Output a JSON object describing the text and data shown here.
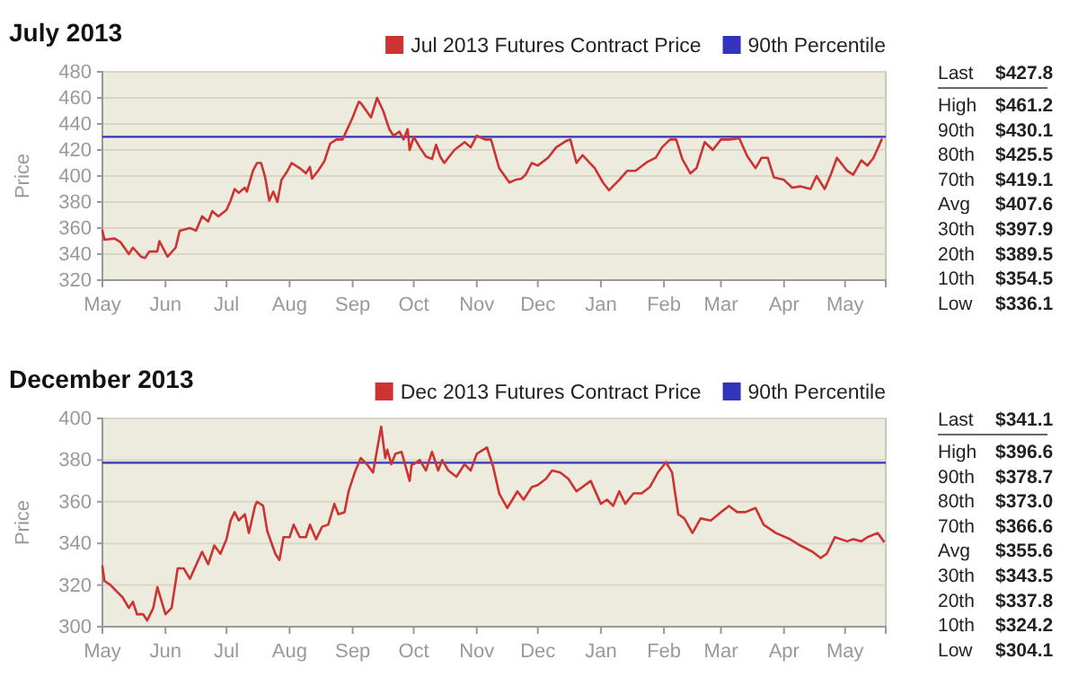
{
  "chart_data": [
    {
      "type": "line",
      "title": "July 2013",
      "ylabel": "Price",
      "legend": "top right",
      "grid": "y",
      "xlim": [
        "2012-05-01",
        "2013-05-21"
      ],
      "xticks": [
        {
          "value": "2012-05-01",
          "label": "May"
        },
        {
          "value": "2012-06-01",
          "label": "Jun"
        },
        {
          "value": "2012-07-01",
          "label": "Jul"
        },
        {
          "value": "2012-08-01",
          "label": "Aug"
        },
        {
          "value": "2012-09-01",
          "label": "Sep"
        },
        {
          "value": "2012-10-01",
          "label": "Oct"
        },
        {
          "value": "2012-11-01",
          "label": "Nov"
        },
        {
          "value": "2012-12-01",
          "label": "Dec"
        },
        {
          "value": "2013-01-01",
          "label": "Jan"
        },
        {
          "value": "2013-02-01",
          "label": "Feb"
        },
        {
          "value": "2013-03-01",
          "label": "Mar"
        },
        {
          "value": "2013-04-01",
          "label": "Apr"
        },
        {
          "value": "2013-05-01",
          "label": "May"
        }
      ],
      "ylim": [
        320,
        480
      ],
      "yticks": [
        320,
        340,
        360,
        380,
        400,
        420,
        440,
        460,
        480
      ],
      "ref_lines": [
        {
          "axis": "y",
          "value": 430.1,
          "label": "90th Percentile",
          "color": "#3333bb"
        }
      ],
      "annotations": [
        "Last $427.8",
        "High $461.2",
        "90th $430.1",
        "80th $425.5",
        "70th $419.1",
        "Avg $407.6",
        "30th $397.9",
        "20th $389.5",
        "10th $354.5",
        "Low $336.1"
      ],
      "series": [
        {
          "name": "Jul 2013 Futures Contract Price",
          "color": "#cc3333",
          "x": [
            "2012-05-01",
            "2012-05-02",
            "2012-05-07",
            "2012-05-10",
            "2012-05-14",
            "2012-05-16",
            "2012-05-20",
            "2012-05-22",
            "2012-05-24",
            "2012-05-28",
            "2012-05-29",
            "2012-06-02",
            "2012-06-06",
            "2012-06-08",
            "2012-06-13",
            "2012-06-16",
            "2012-06-19",
            "2012-06-22",
            "2012-06-24",
            "2012-06-27",
            "2012-07-01",
            "2012-07-03",
            "2012-07-05",
            "2012-07-07",
            "2012-07-10",
            "2012-07-11",
            "2012-07-14",
            "2012-07-16",
            "2012-07-18",
            "2012-07-20",
            "2012-07-22",
            "2012-07-24",
            "2012-07-26",
            "2012-07-28",
            "2012-07-31",
            "2012-08-02",
            "2012-08-06",
            "2012-08-09",
            "2012-08-11",
            "2012-08-12",
            "2012-08-15",
            "2012-08-18",
            "2012-08-21",
            "2012-08-24",
            "2012-08-27",
            "2012-09-01",
            "2012-09-04",
            "2012-09-05",
            "2012-09-10",
            "2012-09-13",
            "2012-09-16",
            "2012-09-19",
            "2012-09-21",
            "2012-09-24",
            "2012-09-26",
            "2012-09-28",
            "2012-09-29",
            "2012-10-01",
            "2012-10-04",
            "2012-10-07",
            "2012-10-10",
            "2012-10-12",
            "2012-10-14",
            "2012-10-16",
            "2012-10-21",
            "2012-10-26",
            "2012-10-29",
            "2012-11-01",
            "2012-11-05",
            "2012-11-08",
            "2012-11-12",
            "2012-11-17",
            "2012-11-20",
            "2012-11-23",
            "2012-11-25",
            "2012-11-28",
            "2012-12-01",
            "2012-12-06",
            "2012-12-10",
            "2012-12-15",
            "2012-12-17",
            "2012-12-20",
            "2012-12-23",
            "2012-12-29",
            "2013-01-02",
            "2013-01-05",
            "2013-01-10",
            "2013-01-14",
            "2013-01-18",
            "2013-01-24",
            "2013-01-28",
            "2013-01-31",
            "2013-02-04",
            "2013-02-07",
            "2013-02-10",
            "2013-02-14",
            "2013-02-17",
            "2013-02-21",
            "2013-02-25",
            "2013-03-01",
            "2013-03-05",
            "2013-03-10",
            "2013-03-14",
            "2013-03-18",
            "2013-03-21",
            "2013-03-24",
            "2013-03-27",
            "2013-04-01",
            "2013-04-05",
            "2013-04-09",
            "2013-04-14",
            "2013-04-17",
            "2013-04-21",
            "2013-04-24",
            "2013-04-27",
            "2013-05-02",
            "2013-05-05",
            "2013-05-09",
            "2013-05-12",
            "2013-05-15",
            "2013-05-19"
          ],
          "values": [
            358,
            351,
            352,
            349,
            340,
            345,
            338,
            337,
            342,
            342,
            350,
            338,
            345,
            358,
            360,
            358,
            369,
            365,
            373,
            369,
            374,
            381,
            390,
            387,
            391,
            388,
            404,
            410,
            410,
            399,
            381,
            388,
            380,
            397,
            404,
            410,
            406,
            402,
            407,
            398,
            404,
            411,
            425,
            428,
            428,
            445,
            457,
            456,
            445,
            460,
            450,
            436,
            431,
            434,
            428,
            436,
            420,
            430,
            422,
            415,
            413,
            424,
            415,
            410,
            420,
            426,
            422,
            431,
            428,
            428,
            406,
            395,
            397,
            398,
            401,
            410,
            408,
            414,
            422,
            427,
            428,
            410,
            416,
            406,
            395,
            389,
            397,
            404,
            404,
            411,
            414,
            422,
            428,
            428,
            413,
            402,
            406,
            426,
            420,
            428,
            428,
            429,
            415,
            406,
            414,
            414,
            399,
            397,
            391,
            392,
            390,
            400,
            390,
            401,
            414,
            404,
            401,
            412,
            408,
            414,
            428
          ]
        }
      ]
    },
    {
      "type": "line",
      "title": "December 2013",
      "ylabel": "Price",
      "legend": "top right",
      "grid": "y",
      "xlim": [
        "2012-05-01",
        "2013-05-21"
      ],
      "xticks": [
        {
          "value": "2012-05-01",
          "label": "May"
        },
        {
          "value": "2012-06-01",
          "label": "Jun"
        },
        {
          "value": "2012-07-01",
          "label": "Jul"
        },
        {
          "value": "2012-08-01",
          "label": "Aug"
        },
        {
          "value": "2012-09-01",
          "label": "Sep"
        },
        {
          "value": "2012-10-01",
          "label": "Oct"
        },
        {
          "value": "2012-11-01",
          "label": "Nov"
        },
        {
          "value": "2012-12-01",
          "label": "Dec"
        },
        {
          "value": "2013-01-01",
          "label": "Jan"
        },
        {
          "value": "2013-02-01",
          "label": "Feb"
        },
        {
          "value": "2013-03-01",
          "label": "Mar"
        },
        {
          "value": "2013-04-01",
          "label": "Apr"
        },
        {
          "value": "2013-05-01",
          "label": "May"
        }
      ],
      "ylim": [
        300,
        400
      ],
      "yticks": [
        300,
        320,
        340,
        360,
        380,
        400
      ],
      "ref_lines": [
        {
          "axis": "y",
          "value": 378.7,
          "label": "90th Percentile",
          "color": "#3333bb"
        }
      ],
      "annotations": [
        "Last $341.1",
        "High $396.6",
        "90th $378.7",
        "80th $373.0",
        "70th $366.6",
        "Avg $355.6",
        "30th $343.5",
        "20th $337.8",
        "10th $324.2",
        "Low $304.1"
      ],
      "series": [
        {
          "name": "Dec 2013 Futures Contract Price",
          "color": "#cc3333",
          "x": [
            "2012-05-01",
            "2012-05-02",
            "2012-05-05",
            "2012-05-08",
            "2012-05-11",
            "2012-05-14",
            "2012-05-16",
            "2012-05-18",
            "2012-05-21",
            "2012-05-23",
            "2012-05-26",
            "2012-05-28",
            "2012-06-01",
            "2012-06-04",
            "2012-06-07",
            "2012-06-10",
            "2012-06-13",
            "2012-06-19",
            "2012-06-22",
            "2012-06-25",
            "2012-06-28",
            "2012-07-01",
            "2012-07-03",
            "2012-07-05",
            "2012-07-07",
            "2012-07-10",
            "2012-07-12",
            "2012-07-15",
            "2012-07-16",
            "2012-07-19",
            "2012-07-21",
            "2012-07-25",
            "2012-07-27",
            "2012-07-29",
            "2012-08-01",
            "2012-08-03",
            "2012-08-06",
            "2012-08-09",
            "2012-08-11",
            "2012-08-14",
            "2012-08-17",
            "2012-08-20",
            "2012-08-23",
            "2012-08-25",
            "2012-08-28",
            "2012-08-30",
            "2012-09-02",
            "2012-09-05",
            "2012-09-08",
            "2012-09-11",
            "2012-09-15",
            "2012-09-17",
            "2012-09-18",
            "2012-09-20",
            "2012-09-22",
            "2012-09-25",
            "2012-09-29",
            "2012-09-30",
            "2012-10-01",
            "2012-10-04",
            "2012-10-07",
            "2012-10-10",
            "2012-10-13",
            "2012-10-15",
            "2012-10-18",
            "2012-10-22",
            "2012-10-26",
            "2012-10-29",
            "2012-11-01",
            "2012-11-06",
            "2012-11-09",
            "2012-11-12",
            "2012-11-16",
            "2012-11-21",
            "2012-11-24",
            "2012-11-28",
            "2012-12-01",
            "2012-12-05",
            "2012-12-08",
            "2012-12-12",
            "2012-12-16",
            "2012-12-20",
            "2012-12-27",
            "2013-01-01",
            "2013-01-04",
            "2013-01-07",
            "2013-01-10",
            "2013-01-13",
            "2013-01-17",
            "2013-01-21",
            "2013-01-25",
            "2013-01-29",
            "2013-02-02",
            "2013-02-05",
            "2013-02-08",
            "2013-02-11",
            "2013-02-15",
            "2013-02-19",
            "2013-02-24",
            "2013-03-01",
            "2013-03-05",
            "2013-03-09",
            "2013-03-13",
            "2013-03-18",
            "2013-03-22",
            "2013-03-28",
            "2013-04-04",
            "2013-04-09",
            "2013-04-15",
            "2013-04-19",
            "2013-04-22",
            "2013-04-26",
            "2013-05-02",
            "2013-05-05",
            "2013-05-09",
            "2013-05-12",
            "2013-05-17",
            "2013-05-20"
          ],
          "values": [
            329,
            322,
            320,
            317,
            314,
            309,
            312,
            306,
            306,
            303,
            309,
            319,
            306,
            309,
            328,
            328,
            323,
            336,
            330,
            339,
            335,
            342,
            351,
            355,
            351,
            354,
            345,
            358,
            360,
            358,
            346,
            335,
            332,
            343,
            343,
            349,
            343,
            343,
            349,
            342,
            348,
            349,
            359,
            354,
            355,
            365,
            374,
            381,
            378,
            374,
            396,
            381,
            385,
            378,
            383,
            384,
            370,
            378,
            378,
            380,
            375,
            384,
            375,
            380,
            375,
            372,
            378,
            375,
            383,
            386,
            377,
            364,
            357,
            365,
            361,
            367,
            368,
            371,
            375,
            374,
            371,
            365,
            370,
            359,
            361,
            358,
            365,
            359,
            364,
            364,
            367,
            374,
            379,
            374,
            354,
            352,
            345,
            352,
            351,
            355,
            358,
            355,
            355,
            357,
            349,
            345,
            342,
            339,
            336,
            333,
            335,
            343,
            341,
            342,
            341,
            343,
            345,
            341
          ]
        }
      ]
    }
  ]
}
